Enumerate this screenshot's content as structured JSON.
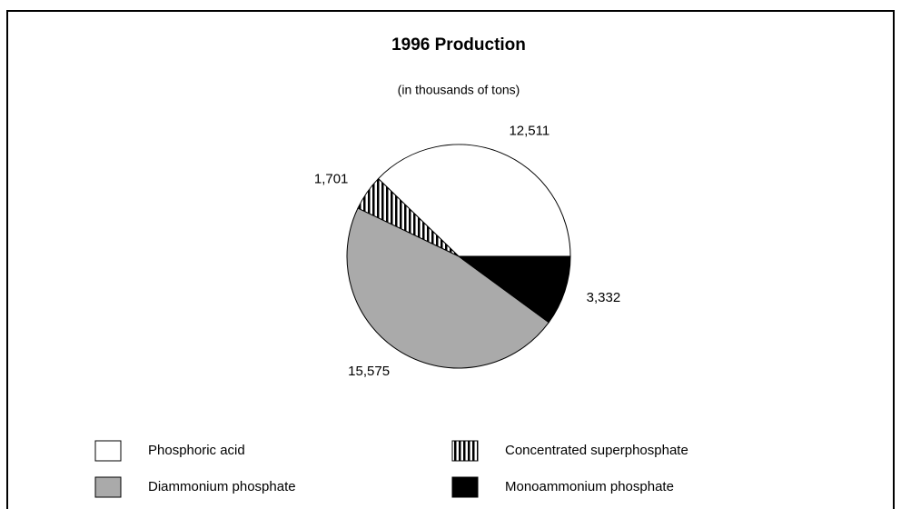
{
  "chart_data": {
    "type": "pie",
    "title": "1996 Production",
    "subtitle": "(in thousands of tons)",
    "categories": [
      "Phosphoric acid",
      "Concentrated superphosphate",
      "Diammonium phosphate",
      "Monoammonium phosphate"
    ],
    "values": [
      12511,
      1701,
      15575,
      3332
    ],
    "value_labels": [
      "12,511",
      "1,701",
      "15,575",
      "3,332"
    ],
    "colors": [
      "#ffffff",
      "#000000",
      "#aaaaaa",
      "#000000"
    ],
    "patterns": [
      "solid",
      "vertical-stripes",
      "solid",
      "solid"
    ]
  }
}
